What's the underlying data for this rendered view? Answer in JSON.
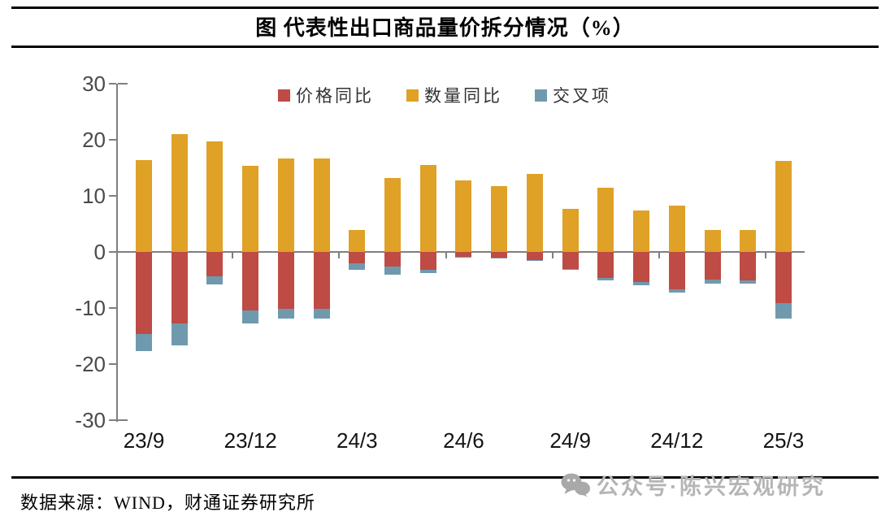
{
  "header": {
    "title": "图  代表性出口商品量价拆分情况（%）"
  },
  "legend": [
    {
      "key": "price",
      "label": "价格同比",
      "color": "#be4b44"
    },
    {
      "key": "quantity",
      "label": "数量同比",
      "color": "#dfa126"
    },
    {
      "key": "cross",
      "label": "交叉项",
      "color": "#6f9aae"
    }
  ],
  "chart_data": {
    "type": "bar",
    "stacked": true,
    "title": "图 代表性出口商品量价拆分情况（%）",
    "categories": [
      "23/9",
      "23/10",
      "23/11",
      "23/12",
      "24/1",
      "24/2",
      "24/3",
      "24/4",
      "24/5",
      "24/6",
      "24/7",
      "24/8",
      "24/9",
      "24/10",
      "24/11",
      "24/12",
      "25/1",
      "25/2",
      "25/3"
    ],
    "x_tick_labels": [
      "23/9",
      "23/12",
      "24/3",
      "24/6",
      "24/9",
      "24/12",
      "25/3"
    ],
    "x_tick_label_indices": [
      0,
      3,
      6,
      9,
      12,
      15,
      18
    ],
    "series": [
      {
        "name": "价格同比",
        "color": "#be4b44",
        "values": [
          -14.6,
          -12.8,
          -4.4,
          -10.4,
          -10.2,
          -10.2,
          -2.1,
          -2.6,
          -3.2,
          -0.9,
          -1.0,
          -1.5,
          -3.0,
          -4.6,
          -5.3,
          -6.6,
          -4.9,
          -5.0,
          -9.2
        ]
      },
      {
        "name": "数量同比",
        "color": "#dfa126",
        "values": [
          16.4,
          21.0,
          19.7,
          15.4,
          16.7,
          16.7,
          3.9,
          13.2,
          15.5,
          12.8,
          11.7,
          13.9,
          7.7,
          11.5,
          7.4,
          8.3,
          3.9,
          3.9,
          16.2
        ]
      },
      {
        "name": "交叉项",
        "color": "#6f9aae",
        "values": [
          -3.1,
          -3.8,
          -1.4,
          -2.3,
          -1.7,
          -1.7,
          -1.1,
          -1.4,
          -0.6,
          -0.1,
          -0.1,
          -0.1,
          -0.2,
          -0.5,
          -0.6,
          -0.7,
          -0.8,
          -0.7,
          -2.7
        ]
      }
    ],
    "ylim": [
      -30,
      30
    ],
    "y_ticks": [
      30,
      20,
      10,
      0,
      -10,
      -20,
      -30
    ],
    "grid": false,
    "legend_position": "top-center"
  },
  "footer": {
    "source": "数据来源：WIND，财通证券研究所"
  },
  "watermark": {
    "text": "公众号·陈兴宏观研究",
    "icon": "wechat-icon"
  }
}
